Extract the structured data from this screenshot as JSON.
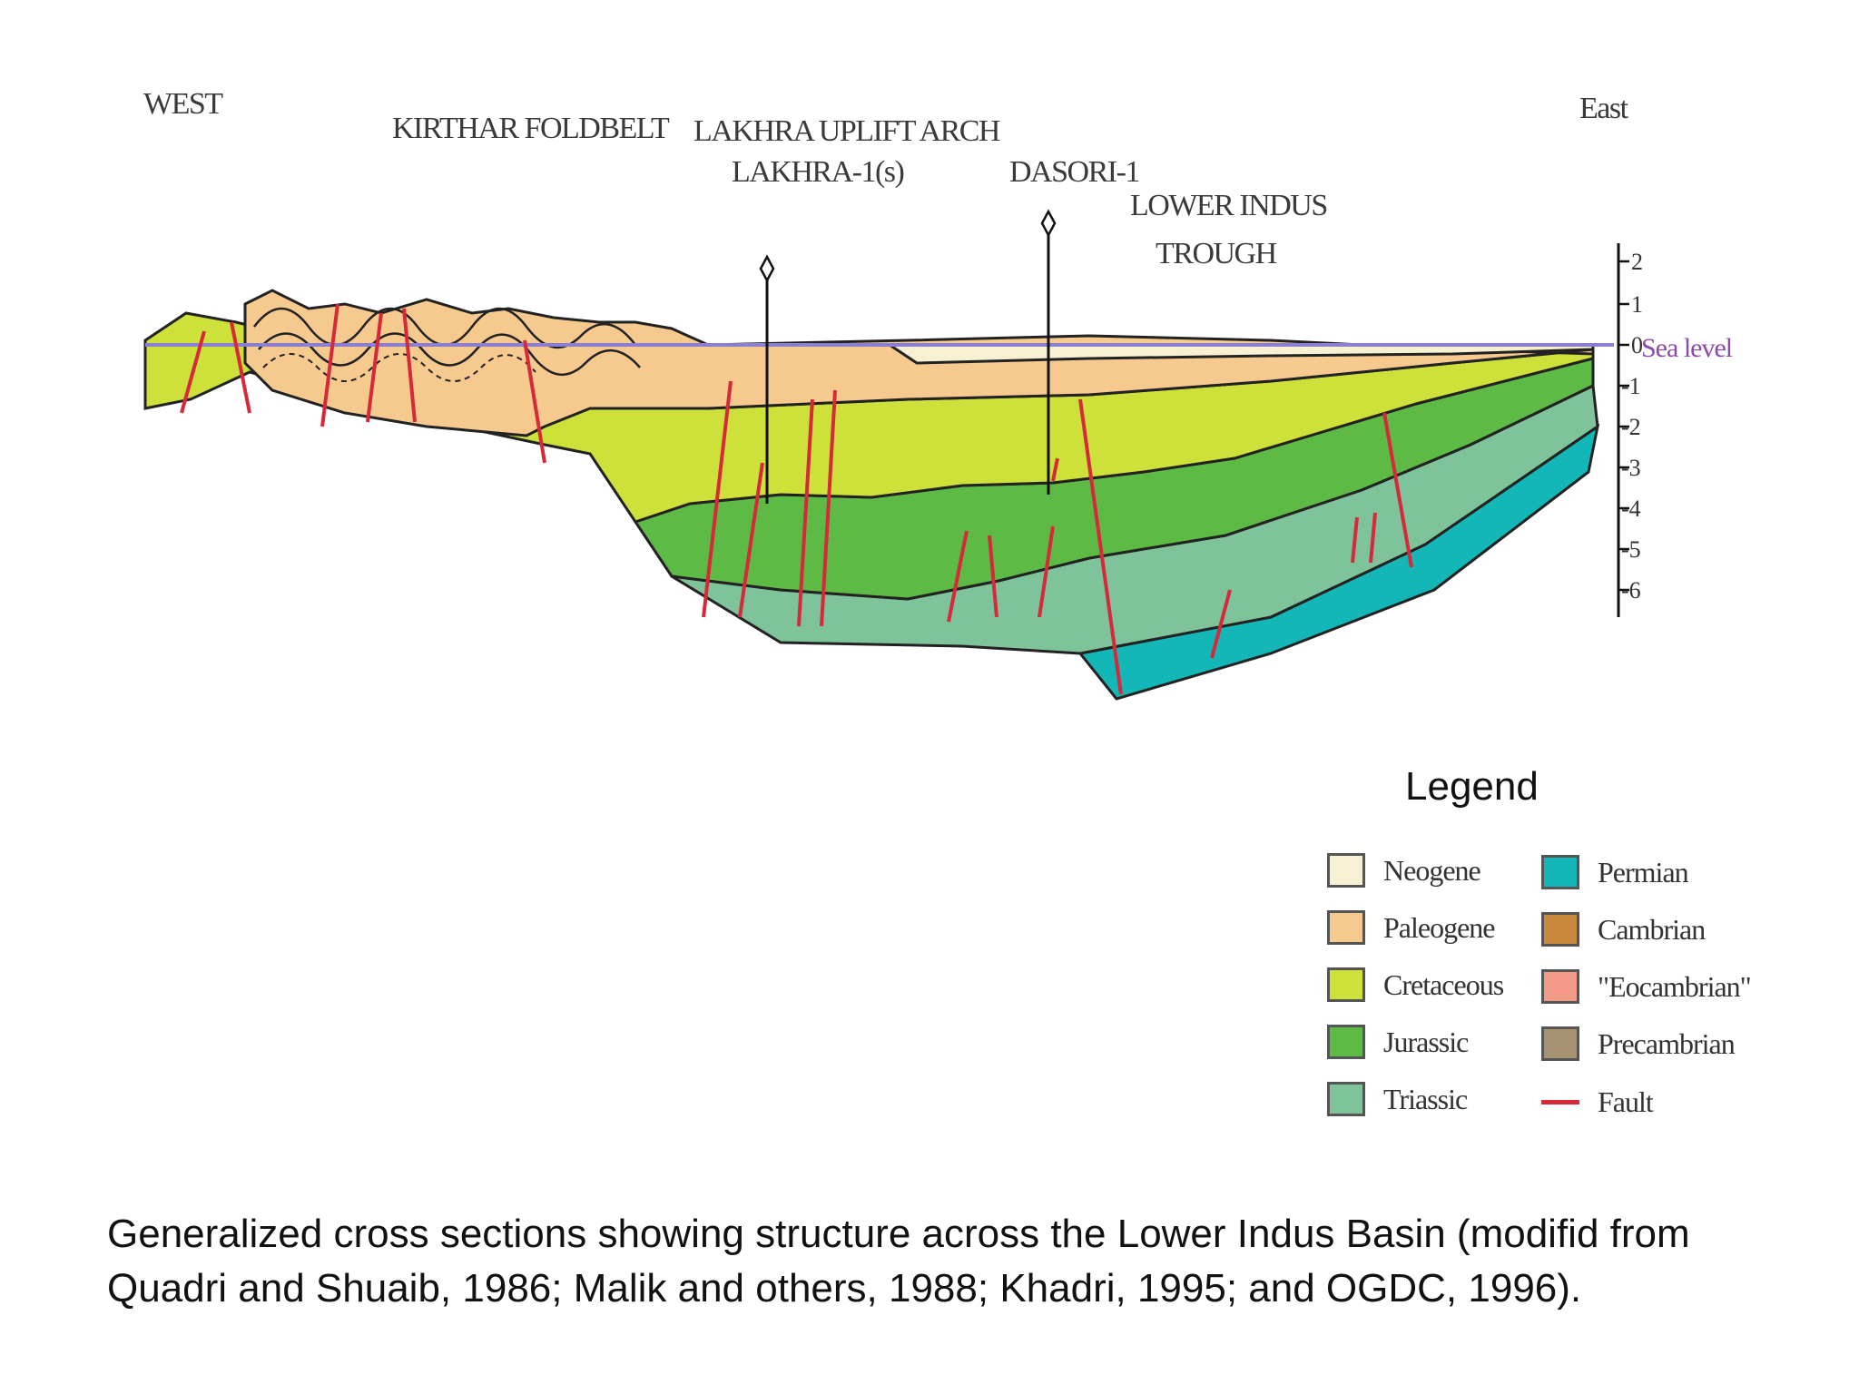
{
  "labels": {
    "west": "WEST",
    "kirthar": "KIRTHAR FOLDBELT",
    "lakhra_arch": "LAKHRA UPLIFT ARCH",
    "lakhra_well": "LAKHRA-1(s)",
    "dasori_well": "DASORI-1",
    "trough_line1": "LOWER INDUS",
    "trough_line2": "TROUGH",
    "east": "East",
    "sea_level": "Sea level"
  },
  "depth_scale": {
    "ticks": [
      "2",
      "1",
      "0",
      "-1",
      "-2",
      "-3",
      "-4",
      "-5",
      "-6"
    ]
  },
  "legend": {
    "title": "Legend",
    "items": [
      {
        "label": "Neogene",
        "color": "#f7f0d2"
      },
      {
        "label": "Paleogene",
        "color": "#f6c98e"
      },
      {
        "label": "Cretaceous",
        "color": "#cde13a"
      },
      {
        "label": "Jurassic",
        "color": "#5dba45"
      },
      {
        "label": "Triassic",
        "color": "#7fc39a"
      },
      {
        "label": "Permian",
        "color": "#14b7b7"
      },
      {
        "label": "Cambrian",
        "color": "#c98a3e"
      },
      {
        "label": "\"Eocambrian\"",
        "color": "#f29a86"
      },
      {
        "label": "Precambrian",
        "color": "#a89274"
      },
      {
        "label": "Fault",
        "color": "#d6293a"
      }
    ]
  },
  "caption": "Generalized cross sections showing structure across the Lower Indus Basin (modifid from Quadri and Shuaib, 1986; Malik and others, 1988; Khadri, 1995; and OGDC, 1996)."
}
